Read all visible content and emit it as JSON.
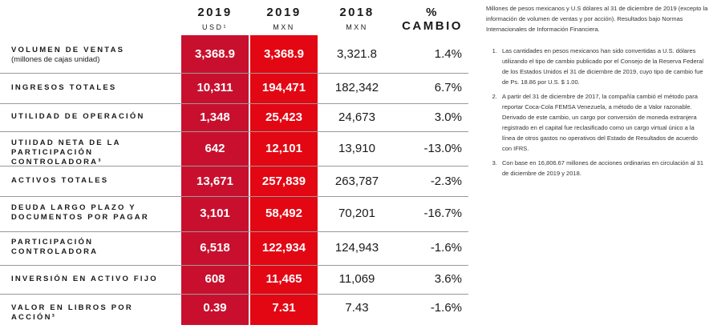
{
  "headers": [
    {
      "year": "2019",
      "currency": "USD¹"
    },
    {
      "year": "2019",
      "currency": "MXN"
    },
    {
      "year": "2018",
      "currency": "MXN"
    },
    {
      "year": "% CAMBIO",
      "currency": ""
    }
  ],
  "rows": [
    {
      "label": "Volumen de ventas",
      "sub": "(millones de cajas unidad)",
      "usd": "3,368.9",
      "mxn": "3,368.9",
      "y2018": "3,321.8",
      "change": "1.4%"
    },
    {
      "label": "Ingresos totales",
      "sub": "",
      "usd": "10,311",
      "mxn": "194,471",
      "y2018": "182,342",
      "change": "6.7%"
    },
    {
      "label": "Utilidad de operación",
      "sub": "",
      "usd": "1,348",
      "mxn": "25,423",
      "y2018": "24,673",
      "change": "3.0%"
    },
    {
      "label": "Utiidad neta de la participación controladora³",
      "sub": "",
      "usd": "642",
      "mxn": "12,101",
      "y2018": "13,910",
      "change": "-13.0%"
    },
    {
      "label": "Activos totales",
      "sub": "",
      "usd": "13,671",
      "mxn": "257,839",
      "y2018": "263,787",
      "change": "-2.3%"
    },
    {
      "label": "Deuda largo plazo y documentos por pagar",
      "sub": "",
      "usd": "3,101",
      "mxn": "58,492",
      "y2018": "70,201",
      "change": "-16.7%"
    },
    {
      "label": "Participación controladora",
      "sub": "",
      "usd": "6,518",
      "mxn": "122,934",
      "y2018": "124,943",
      "change": "-1.6%"
    },
    {
      "label": "Inversión en activo fijo",
      "sub": "",
      "usd": "608",
      "mxn": "11,465",
      "y2018": "11,069",
      "change": "3.6%"
    },
    {
      "label": "Valor en libros por acción³",
      "sub": "",
      "usd": "0.39",
      "mxn": "7.31",
      "y2018": "7.43",
      "change": "-1.6%"
    }
  ],
  "notes": {
    "intro": "Millones de pesos mexicanos y U.S dólares al 31 de diciembre de 2019 (excepto la información de volumen de ventas y por acción). Resultados bajo Normas Internacionales de Información Financiera.",
    "items": [
      "Las cantidades en pesos mexicanos han sido convertidas a U.S. dólares utilizando el tipo de cambio publicado por el Consejo de la Reserva Federal de los Estados Unidos el 31 de diciembre de 2019, cuyo tipo de cambio fue de Ps. 18.86 por U.S. $ 1.00.",
      "A partir del 31 de diciembre de 2017, la compañía cambió el método para reportar Coca-Cola FEMSA Venezuela, a método de a Valor razonable. Derivado de este cambio, un cargo por conversión de moneda extranjera registrado en el capital fue reclasificado como un cargo virtual único a la línea de otros gastos no operativos del Estado de Resultados de acuerdo con IFRS.",
      "Con base en 16,806.67 millones de acciones ordinarias en circulación al 31 de diciembre de 2019 y 2018."
    ]
  },
  "colors": {
    "usd_column": "#c8102e",
    "mxn_column": "#e30613"
  }
}
